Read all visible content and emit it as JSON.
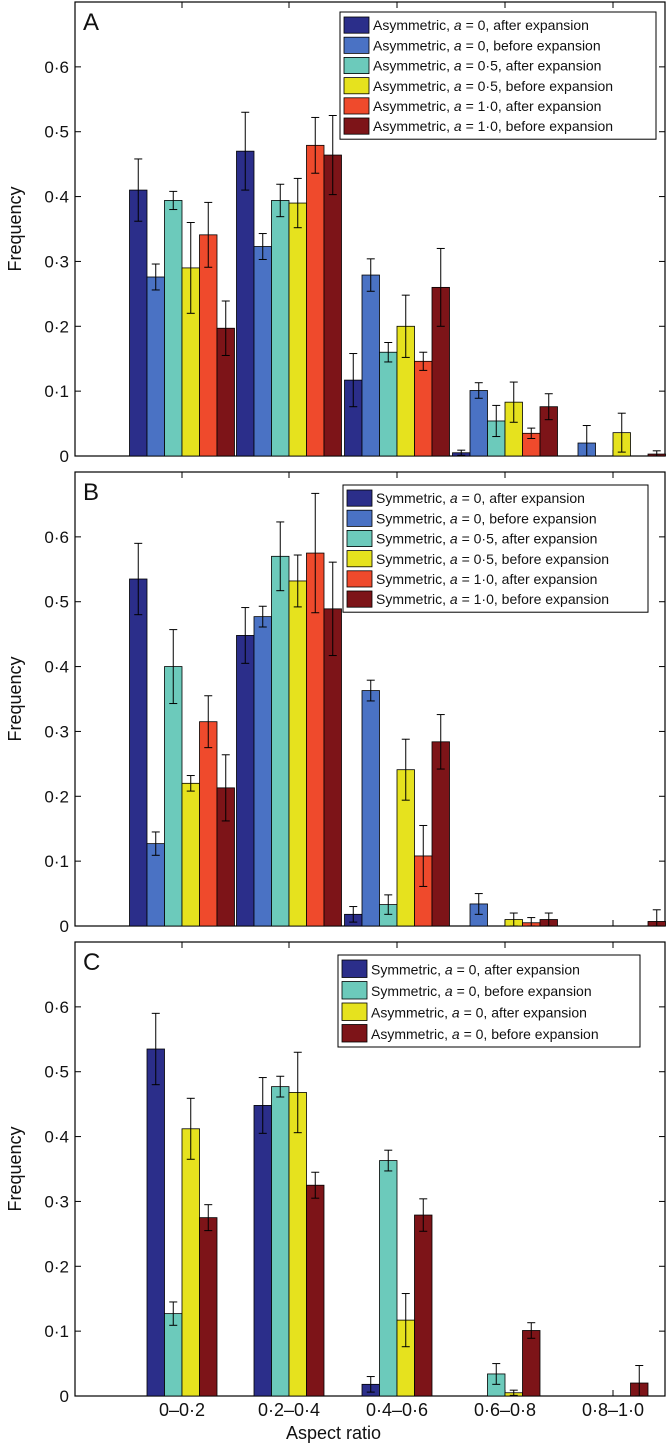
{
  "figure": {
    "xlabel": "Aspect ratio"
  },
  "chart_data": [
    {
      "type": "bar",
      "panel": "A",
      "ylabel": "Frequency",
      "ylim": [
        0,
        0.7
      ],
      "yticks": [
        0,
        0.1,
        0.2,
        0.3,
        0.4,
        0.5,
        0.6
      ],
      "ytick_labels": [
        "0",
        "0·1",
        "0·2",
        "0·3",
        "0·4",
        "0·5",
        "0·6"
      ],
      "categories": [
        "0–0·2",
        "0·2–0·4",
        "0·4–0·6",
        "0·6–0·8",
        "0·8–1·0"
      ],
      "show_category_labels": false,
      "legend_position": "top-right",
      "series": [
        {
          "name": "Asymmetric, a = 0, after expansion",
          "prefix": "Asymmetric, ",
          "var": "a",
          "rest": " = 0, after expansion",
          "color": "#2b2e8a",
          "values": [
            0.41,
            0.47,
            0.117,
            0.005,
            0
          ],
          "errors": [
            0.048,
            0.06,
            0.041,
            0.004,
            0
          ]
        },
        {
          "name": "Asymmetric, a = 0, before expansion",
          "prefix": "Asymmetric, ",
          "var": "a",
          "rest": " = 0, before expansion",
          "color": "#4a72c4",
          "values": [
            0.276,
            0.323,
            0.279,
            0.101,
            0.02
          ],
          "errors": [
            0.02,
            0.02,
            0.025,
            0.012,
            0.027
          ]
        },
        {
          "name": "Asymmetric, a = 0·5, after expansion",
          "prefix": "Asymmetric, ",
          "var": "a",
          "rest": " = 0·5, after expansion",
          "color": "#6ccabb",
          "values": [
            0.394,
            0.394,
            0.16,
            0.054,
            0
          ],
          "errors": [
            0.014,
            0.025,
            0.015,
            0.024,
            0
          ]
        },
        {
          "name": "Asymmetric, a = 0·5, before expansion",
          "prefix": "Asymmetric, ",
          "var": "a",
          "rest": " = 0·5, before expansion",
          "color": "#e6e21e",
          "values": [
            0.29,
            0.39,
            0.2,
            0.083,
            0.036
          ],
          "errors": [
            0.07,
            0.038,
            0.048,
            0.031,
            0.03
          ]
        },
        {
          "name": "Asymmetric, a = 1·0, after expansion",
          "prefix": "Asymmetric, ",
          "var": "a",
          "rest": " = 1·0, after expansion",
          "color": "#ef4a2c",
          "values": [
            0.341,
            0.479,
            0.146,
            0.035,
            0
          ],
          "errors": [
            0.05,
            0.043,
            0.014,
            0.008,
            0
          ]
        },
        {
          "name": "Asymmetric, a = 1·0, before expansion",
          "prefix": "Asymmetric, ",
          "var": "a",
          "rest": " = 1·0, before expansion",
          "color": "#7d1418",
          "values": [
            0.197,
            0.464,
            0.26,
            0.076,
            0.003
          ],
          "errors": [
            0.042,
            0.061,
            0.06,
            0.02,
            0.005
          ]
        }
      ]
    },
    {
      "type": "bar",
      "panel": "B",
      "ylabel": "Frequency",
      "ylim": [
        0,
        0.7
      ],
      "yticks": [
        0,
        0.1,
        0.2,
        0.3,
        0.4,
        0.5,
        0.6
      ],
      "ytick_labels": [
        "0",
        "0·1",
        "0·2",
        "0·3",
        "0·4",
        "0·5",
        "0·6"
      ],
      "categories": [
        "0–0·2",
        "0·2–0·4",
        "0·4–0·6",
        "0·6–0·8",
        "0·8–1·0"
      ],
      "show_category_labels": false,
      "legend_position": "top-right",
      "series": [
        {
          "name": "Symmetric, a = 0, after expansion",
          "prefix": "Symmetric, ",
          "var": "a",
          "rest": " = 0, after expansion",
          "color": "#2b2e8a",
          "values": [
            0.535,
            0.448,
            0.018,
            0,
            0
          ],
          "errors": [
            0.055,
            0.043,
            0.012,
            0,
            0
          ]
        },
        {
          "name": "Symmetric, a = 0, before expansion",
          "prefix": "Symmetric, ",
          "var": "a",
          "rest": " = 0, before expansion",
          "color": "#4a72c4",
          "values": [
            0.127,
            0.477,
            0.363,
            0.034,
            0
          ],
          "errors": [
            0.018,
            0.016,
            0.016,
            0.016,
            0
          ]
        },
        {
          "name": "Symmetric, a = 0·5, after expansion",
          "prefix": "Symmetric, ",
          "var": "a",
          "rest": " = 0·5, after expansion",
          "color": "#6ccabb",
          "values": [
            0.4,
            0.57,
            0.033,
            0,
            0
          ],
          "errors": [
            0.057,
            0.053,
            0.015,
            0,
            0
          ]
        },
        {
          "name": "Symmetric, a = 0·5, before expansion",
          "prefix": "Symmetric, ",
          "var": "a",
          "rest": " = 0·5, before expansion",
          "color": "#e6e21e",
          "values": [
            0.22,
            0.532,
            0.241,
            0.01,
            0
          ],
          "errors": [
            0.012,
            0.04,
            0.047,
            0.01,
            0
          ]
        },
        {
          "name": "Symmetric, a = 1·0, after expansion",
          "prefix": "Symmetric, ",
          "var": "a",
          "rest": " = 1·0, after expansion",
          "color": "#ef4a2c",
          "values": [
            0.315,
            0.575,
            0.108,
            0.005,
            0
          ],
          "errors": [
            0.04,
            0.092,
            0.047,
            0.008,
            0
          ]
        },
        {
          "name": "Symmetric, a = 1·0, before expansion",
          "prefix": "Symmetric, ",
          "var": "a",
          "rest": " = 1·0, before expansion",
          "color": "#7d1418",
          "values": [
            0.213,
            0.489,
            0.284,
            0.01,
            0.007
          ],
          "errors": [
            0.051,
            0.072,
            0.042,
            0.01,
            0.018
          ]
        }
      ]
    },
    {
      "type": "bar",
      "panel": "C",
      "ylabel": "Frequency",
      "ylim": [
        0,
        0.7
      ],
      "yticks": [
        0,
        0.1,
        0.2,
        0.3,
        0.4,
        0.5,
        0.6
      ],
      "ytick_labels": [
        "0",
        "0·1",
        "0·2",
        "0·3",
        "0·4",
        "0·5",
        "0·6"
      ],
      "categories": [
        "0–0·2",
        "0·2–0·4",
        "0·4–0·6",
        "0·6–0·8",
        "0·8–1·0"
      ],
      "show_category_labels": true,
      "legend_position": "top-right",
      "series": [
        {
          "name": "Symmetric, a = 0, after expansion",
          "prefix": "Symmetric, ",
          "var": "a",
          "rest": " = 0, after expansion",
          "color": "#2b2e8a",
          "values": [
            0.535,
            0.448,
            0.018,
            0,
            0
          ],
          "errors": [
            0.055,
            0.043,
            0.012,
            0,
            0
          ]
        },
        {
          "name": "Symmetric, a = 0, before expansion",
          "prefix": "Symmetric, ",
          "var": "a",
          "rest": " = 0, before expansion",
          "color": "#6ccabb",
          "values": [
            0.127,
            0.477,
            0.363,
            0.034,
            0
          ],
          "errors": [
            0.018,
            0.016,
            0.016,
            0.016,
            0
          ]
        },
        {
          "name": "Asymmetric, a = 0, after expansion",
          "prefix": "Asymmetric, ",
          "var": "a",
          "rest": " = 0, after expansion",
          "color": "#e6e21e",
          "values": [
            0.412,
            0.468,
            0.117,
            0.005,
            0
          ],
          "errors": [
            0.047,
            0.062,
            0.041,
            0.004,
            0
          ]
        },
        {
          "name": "Asymmetric, a = 0, before expansion",
          "prefix": "Asymmetric, ",
          "var": "a",
          "rest": " = 0, before expansion",
          "color": "#7d1418",
          "values": [
            0.275,
            0.325,
            0.279,
            0.101,
            0.02
          ],
          "errors": [
            0.02,
            0.02,
            0.025,
            0.012,
            0.027
          ]
        }
      ]
    }
  ]
}
